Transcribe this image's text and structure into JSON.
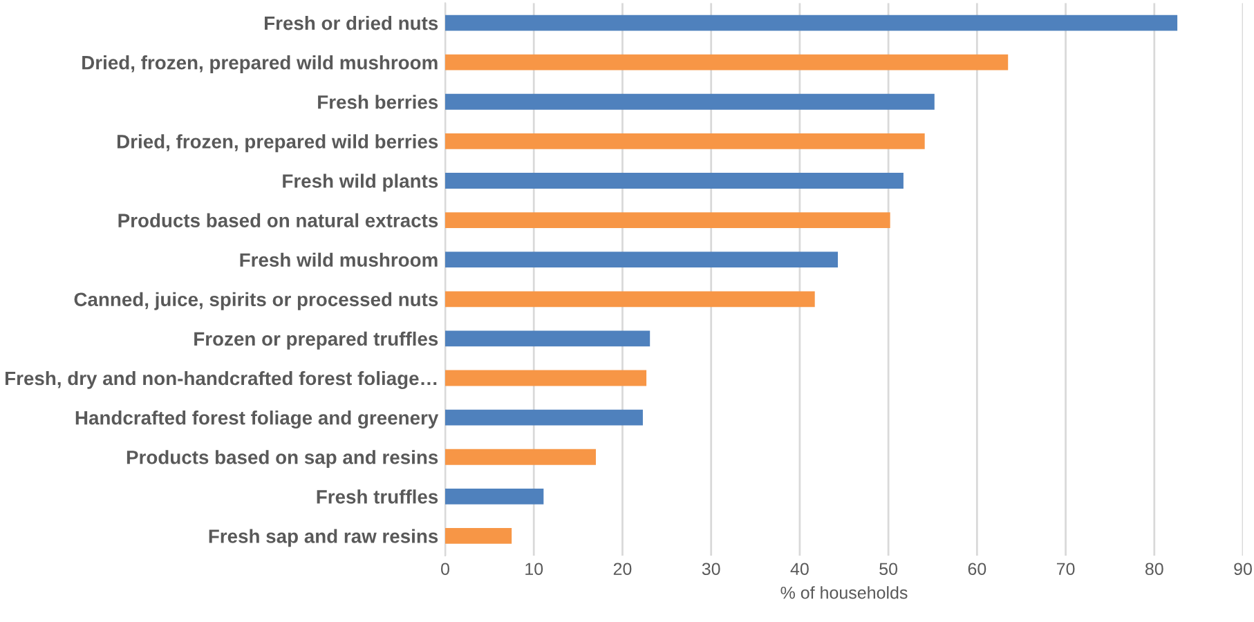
{
  "chart_data": {
    "type": "bar",
    "orientation": "horizontal",
    "xlabel": "% of households",
    "categories": [
      "Fresh or dried nuts",
      "Dried, frozen, prepared wild mushroom",
      "Fresh berries",
      "Dried, frozen, prepared wild berries",
      "Fresh wild plants",
      "Products based on natural extracts",
      "Fresh wild mushroom",
      "Canned, juice, spirits or processed nuts",
      "Frozen or prepared truffles",
      "Fresh, dry and non-handcrafted forest foliage…",
      "Handcrafted forest foliage and greenery",
      "Products based on sap and resins",
      "Fresh truffles",
      "Fresh sap and raw resins"
    ],
    "values": [
      82.6,
      63.5,
      55.2,
      54.1,
      51.7,
      50.2,
      44.3,
      41.7,
      23.1,
      22.7,
      22.3,
      17.0,
      11.1,
      7.5
    ],
    "colors": [
      "#4f81bd",
      "#f79646",
      "#4f81bd",
      "#f79646",
      "#4f81bd",
      "#f79646",
      "#4f81bd",
      "#f79646",
      "#4f81bd",
      "#f79646",
      "#4f81bd",
      "#f79646",
      "#4f81bd",
      "#f79646"
    ],
    "xlim": [
      0,
      90
    ],
    "xticks": [
      0,
      10,
      20,
      30,
      40,
      50,
      60,
      70,
      80,
      90
    ],
    "grid": "x",
    "legend": false
  }
}
